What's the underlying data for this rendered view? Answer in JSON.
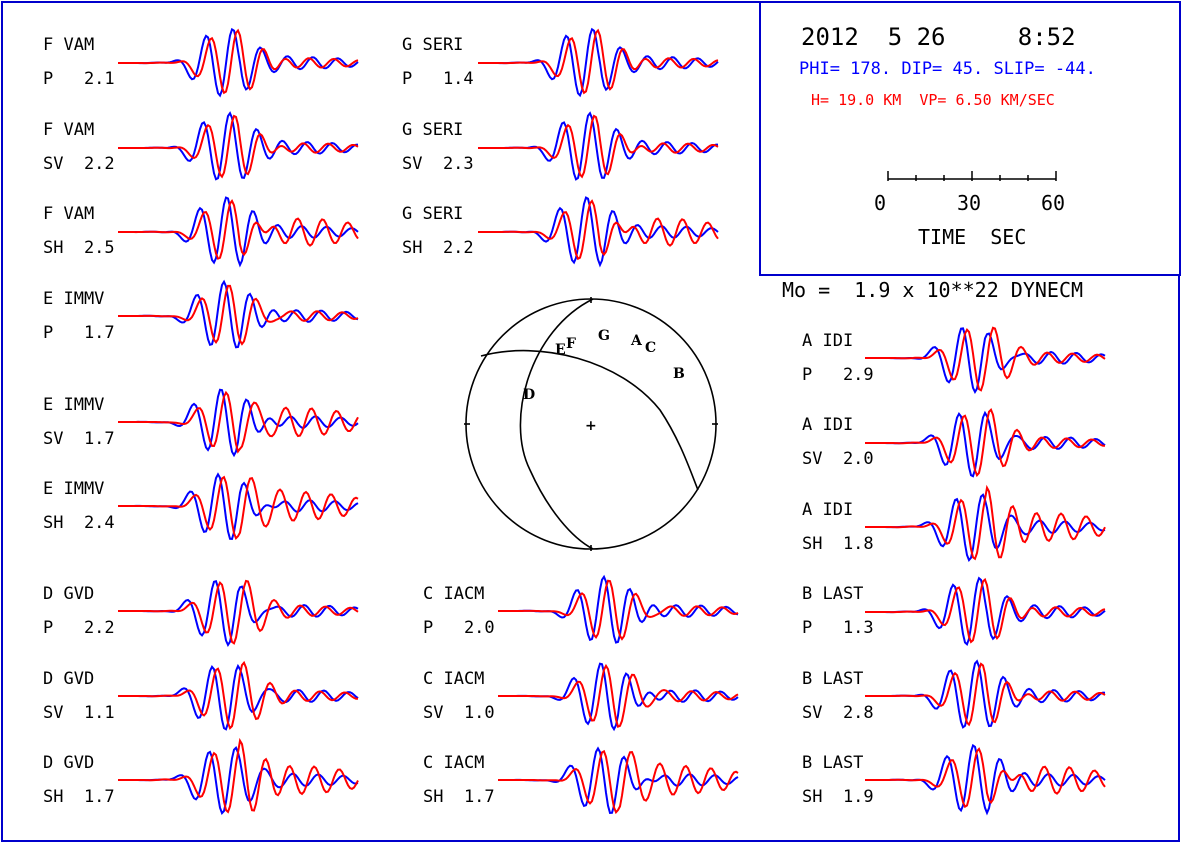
{
  "header": {
    "date_time": "2012  5 26     8:52",
    "mechanism": "PHI= 178. DIP= 45. SLIP= -44.",
    "depth_velocity": "H= 19.0 KM  VP= 6.50 KM/SEC"
  },
  "scale_bar": {
    "ticks": [
      "0",
      "30",
      "60"
    ],
    "label": "TIME  SEC"
  },
  "moment": "Mo =  1.9 x 10**22 DYNECM",
  "colors": {
    "observed": "#0000ff",
    "synthetic": "#ff0000",
    "frame": "#0000cc"
  },
  "traces": [
    {
      "station": "F VAM",
      "phase_amp": "P   2.1"
    },
    {
      "station": "F VAM",
      "phase_amp": "SV  2.2"
    },
    {
      "station": "F VAM",
      "phase_amp": "SH  2.5"
    },
    {
      "station": "E IMMV",
      "phase_amp": "P   1.7"
    },
    {
      "station": "E IMMV",
      "phase_amp": "SV  1.7"
    },
    {
      "station": "E IMMV",
      "phase_amp": "SH  2.4"
    },
    {
      "station": "D GVD",
      "phase_amp": "P   2.2"
    },
    {
      "station": "D GVD",
      "phase_amp": "SV  1.1"
    },
    {
      "station": "D GVD",
      "phase_amp": "SH  1.7"
    },
    {
      "station": "G SERI",
      "phase_amp": "P   1.4"
    },
    {
      "station": "G SERI",
      "phase_amp": "SV  2.3"
    },
    {
      "station": "G SERI",
      "phase_amp": "SH  2.2"
    },
    {
      "station": "C IACM",
      "phase_amp": "P   2.0"
    },
    {
      "station": "C IACM",
      "phase_amp": "SV  1.0"
    },
    {
      "station": "C IACM",
      "phase_amp": "SH  1.7"
    },
    {
      "station": "A IDI",
      "phase_amp": "P   2.9"
    },
    {
      "station": "A IDI",
      "phase_amp": "SV  2.0"
    },
    {
      "station": "A IDI",
      "phase_amp": "SH  1.8"
    },
    {
      "station": "B LAST",
      "phase_amp": "P   1.3"
    },
    {
      "station": "B LAST",
      "phase_amp": "SV  2.8"
    },
    {
      "station": "B LAST",
      "phase_amp": "SH  1.9"
    }
  ],
  "focal_sphere": {
    "station_letters": [
      "E",
      "F",
      "G",
      "A",
      "C",
      "B",
      "D"
    ],
    "center_mark": "+"
  }
}
